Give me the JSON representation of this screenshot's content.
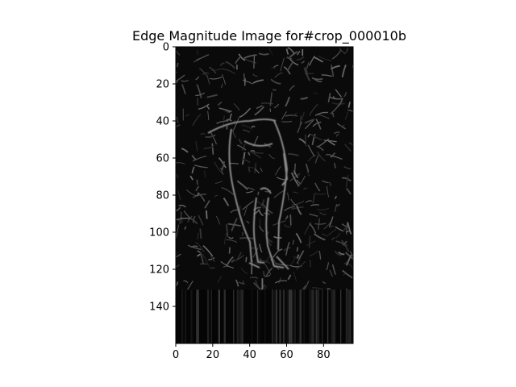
{
  "chart_data": {
    "type": "heatmap",
    "title": "Edge Magnitude Image for#crop_000010b",
    "xlabel": "",
    "ylabel": "",
    "colormap": "gray",
    "image_width": 96,
    "image_height": 160,
    "xlim": [
      0,
      96
    ],
    "ylim": [
      160,
      0
    ],
    "x_ticks": [
      0,
      20,
      40,
      60,
      80
    ],
    "y_ticks": [
      0,
      20,
      40,
      60,
      80,
      100,
      120,
      140
    ],
    "grid": false
  },
  "colors": {
    "background": "#ffffff",
    "image_base": "#0a0a0a",
    "edge_strong": "#8a8a8a",
    "axis": "#000000"
  }
}
